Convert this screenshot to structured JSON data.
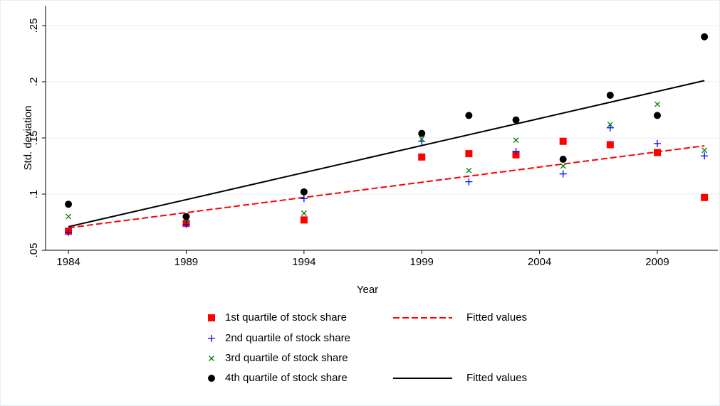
{
  "chart_data": {
    "type": "scatter",
    "xlabel": "Year",
    "ylabel": "Std. deviation",
    "xlim": [
      1983.03,
      2011.57
    ],
    "xticks": [
      1984,
      1989,
      1994,
      1999,
      2004,
      2009
    ],
    "ylim": [
      0.05,
      0.2677
    ],
    "yticks": [
      {
        "value": 0.05,
        "label": ".05"
      },
      {
        "value": 0.1,
        "label": ".1"
      },
      {
        "value": 0.15,
        "label": ".15"
      },
      {
        "value": 0.2,
        "label": ".2"
      },
      {
        "value": 0.25,
        "label": ".25"
      }
    ],
    "grid": true,
    "legend": "bottom",
    "series": [
      {
        "name": "1st quartile of stock share",
        "color": "#ff0000",
        "marker": "square",
        "x": [
          1984,
          1989,
          1994,
          1999,
          2001,
          2003,
          2005,
          2007,
          2009,
          2011
        ],
        "values": [
          0.067,
          0.074,
          0.077,
          0.133,
          0.136,
          0.135,
          0.147,
          0.144,
          0.137,
          0.097
        ]
      },
      {
        "name": "2nd quartile of stock share",
        "color": "#0000ff",
        "marker": "plus",
        "x": [
          1984,
          1989,
          1994,
          1999,
          2001,
          2003,
          2005,
          2007,
          2009,
          2011
        ],
        "values": [
          0.066,
          0.073,
          0.096,
          0.147,
          0.111,
          0.138,
          0.118,
          0.159,
          0.145,
          0.134
        ]
      },
      {
        "name": "3rd quartile of stock share",
        "color": "#008000",
        "marker": "x",
        "x": [
          1984,
          1989,
          1994,
          1999,
          2001,
          2003,
          2005,
          2007,
          2009,
          2011
        ],
        "values": [
          0.08,
          0.077,
          0.083,
          0.149,
          0.121,
          0.148,
          0.125,
          0.162,
          0.18,
          0.139
        ]
      },
      {
        "name": "4th quartile of stock share",
        "color": "#000000",
        "marker": "circle",
        "x": [
          1984,
          1989,
          1994,
          1999,
          2001,
          2003,
          2005,
          2007,
          2009,
          2011
        ],
        "values": [
          0.091,
          0.08,
          0.102,
          0.154,
          0.17,
          0.166,
          0.131,
          0.188,
          0.17,
          0.24
        ]
      },
      {
        "name": "Fitted values",
        "color": "#ff0000",
        "line": "dashed",
        "x": [
          1984,
          2011
        ],
        "values": [
          0.07,
          0.143
        ]
      },
      {
        "name": "Fitted values",
        "color": "#000000",
        "line": "solid",
        "x": [
          1984,
          2011
        ],
        "values": [
          0.071,
          0.201
        ]
      }
    ]
  }
}
